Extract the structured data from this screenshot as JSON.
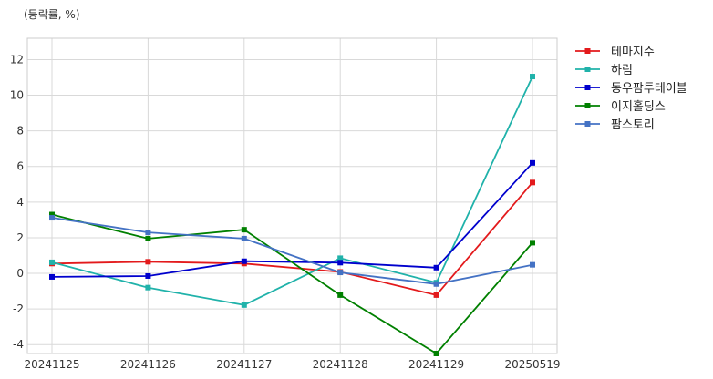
{
  "chart_data": {
    "type": "line",
    "title": "",
    "unit_label": "(등락률, %)",
    "xlabel": "",
    "ylabel": "",
    "categories": [
      "20241125",
      "20241126",
      "20241127",
      "20241128",
      "20241129",
      "20250519"
    ],
    "ylim": [
      -4.5,
      13.2
    ],
    "yticks": [
      -4,
      -2,
      0,
      2,
      4,
      6,
      8,
      10,
      12
    ],
    "ytick_labels": [
      "-4",
      "-2",
      "0",
      "2",
      "4",
      "6",
      "8",
      "10",
      "12"
    ],
    "grid": true,
    "legend_position": "outside-top-right",
    "series": [
      {
        "name": "테마지수",
        "color": "#e31a1c",
        "values": [
          0.55,
          0.65,
          0.55,
          0.08,
          -1.22,
          5.1
        ]
      },
      {
        "name": "하림",
        "color": "#20b2aa",
        "values": [
          0.62,
          -0.8,
          -1.78,
          0.85,
          -0.52,
          11.05
        ]
      },
      {
        "name": "동우팜투테이블",
        "color": "#0000cd",
        "values": [
          -0.2,
          -0.15,
          0.68,
          0.6,
          0.32,
          6.2
        ]
      },
      {
        "name": "이지홀딩스",
        "color": "#008000",
        "values": [
          3.3,
          1.95,
          2.45,
          -1.22,
          -4.5,
          1.72
        ]
      },
      {
        "name": "팜스토리",
        "color": "#4472c4",
        "values": [
          3.12,
          2.3,
          1.95,
          0.05,
          -0.6,
          0.48
        ]
      }
    ]
  }
}
